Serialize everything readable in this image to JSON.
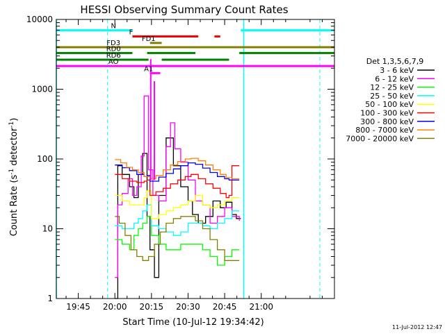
{
  "chart_data": {
    "type": "line",
    "title": "HESSI Observing Summary Count Rates",
    "xlabel": "Start Time (10-Jul-12 19:34:42)",
    "ylabel_main": "Count Rate (s",
    "ylabel_sup1": "-1",
    "ylabel_mid": " detector",
    "ylabel_sup2": "-1",
    "ylabel_end": ")",
    "footer": "11-Jul-2012 12:47",
    "x_range_min": [
      19.6,
      21.5
    ],
    "y_scale": "log",
    "y_range": [
      1,
      10000
    ],
    "x_ticks": [
      {
        "min": 19.75,
        "label": "19:45"
      },
      {
        "min": 20.0,
        "label": "20:00"
      },
      {
        "min": 20.25,
        "label": "20:15"
      },
      {
        "min": 20.5,
        "label": "20:30"
      },
      {
        "min": 20.75,
        "label": "20:45"
      },
      {
        "min": 21.0,
        "label": "21:00"
      }
    ],
    "y_ticks": [
      {
        "value": 1,
        "label": "1"
      },
      {
        "value": 10,
        "label": "10"
      },
      {
        "value": 100,
        "label": "100"
      },
      {
        "value": 1000,
        "label": "1000"
      },
      {
        "value": 10000,
        "label": "10000"
      }
    ],
    "legend_title": "Det 1,3,5,6,7,9",
    "legend_placement": "right",
    "series": [
      {
        "name": "3 - 6 keV",
        "color": "#000000",
        "points": [
          [
            20.0,
            1
          ],
          [
            20.02,
            80
          ],
          [
            20.05,
            60
          ],
          [
            20.1,
            40
          ],
          [
            20.13,
            28
          ],
          [
            20.16,
            60
          ],
          [
            20.19,
            120
          ],
          [
            20.22,
            15
          ],
          [
            20.24,
            5
          ],
          [
            20.27,
            2
          ],
          [
            20.3,
            30
          ],
          [
            20.35,
            200
          ],
          [
            20.4,
            80
          ],
          [
            20.45,
            40
          ],
          [
            20.5,
            25
          ],
          [
            20.53,
            16
          ],
          [
            20.57,
            12
          ],
          [
            20.62,
            15
          ],
          [
            20.67,
            25
          ],
          [
            20.72,
            20
          ],
          [
            20.76,
            24
          ],
          [
            20.8,
            16
          ],
          [
            20.83,
            14
          ],
          [
            20.86,
            14
          ]
        ]
      },
      {
        "name": "6 - 12 keV",
        "color": "#ff00ff",
        "points": [
          [
            20.0,
            2
          ],
          [
            20.02,
            22
          ],
          [
            20.05,
            32
          ],
          [
            20.09,
            52
          ],
          [
            20.12,
            30
          ],
          [
            20.15,
            40
          ],
          [
            20.18,
            110
          ],
          [
            20.2,
            800
          ],
          [
            20.23,
            70
          ],
          [
            20.26,
            30
          ],
          [
            20.3,
            25
          ],
          [
            20.35,
            150
          ],
          [
            20.38,
            330
          ],
          [
            20.41,
            140
          ],
          [
            20.45,
            90
          ],
          [
            20.5,
            50
          ],
          [
            20.55,
            25
          ],
          [
            20.6,
            22
          ],
          [
            20.65,
            12
          ],
          [
            20.7,
            15
          ],
          [
            20.75,
            20
          ],
          [
            20.8,
            15
          ],
          [
            20.85,
            13
          ]
        ]
      },
      {
        "name": "12 - 25 keV",
        "color": "#00ff00",
        "points": [
          [
            20.0,
            7
          ],
          [
            20.05,
            6
          ],
          [
            20.1,
            5
          ],
          [
            20.13,
            8
          ],
          [
            20.16,
            10
          ],
          [
            20.19,
            12
          ],
          [
            20.22,
            15
          ],
          [
            20.25,
            8
          ],
          [
            20.3,
            6
          ],
          [
            20.35,
            5
          ],
          [
            20.4,
            5
          ],
          [
            20.45,
            6
          ],
          [
            20.5,
            6
          ],
          [
            20.55,
            6
          ],
          [
            20.6,
            5
          ],
          [
            20.65,
            4
          ],
          [
            20.7,
            3
          ],
          [
            20.75,
            4
          ],
          [
            20.8,
            5
          ],
          [
            20.85,
            5
          ]
        ]
      },
      {
        "name": "25 - 50 keV",
        "color": "#00ffff",
        "points": [
          [
            20.0,
            11
          ],
          [
            20.05,
            10
          ],
          [
            20.1,
            10
          ],
          [
            20.13,
            12
          ],
          [
            20.16,
            14
          ],
          [
            20.19,
            18
          ],
          [
            20.22,
            22
          ],
          [
            20.25,
            11
          ],
          [
            20.3,
            10
          ],
          [
            20.35,
            9
          ],
          [
            20.4,
            8
          ],
          [
            20.45,
            9
          ],
          [
            20.5,
            12
          ],
          [
            20.55,
            12
          ],
          [
            20.6,
            11
          ],
          [
            20.65,
            10
          ],
          [
            20.7,
            12
          ],
          [
            20.75,
            14
          ],
          [
            20.8,
            18
          ],
          [
            20.85,
            18
          ]
        ]
      },
      {
        "name": "50 - 100 keV",
        "color": "#ffff00",
        "points": [
          [
            20.0,
            30
          ],
          [
            20.05,
            25
          ],
          [
            20.1,
            22
          ],
          [
            20.15,
            22
          ],
          [
            20.2,
            28
          ],
          [
            20.22,
            35
          ],
          [
            20.25,
            14
          ],
          [
            20.3,
            16
          ],
          [
            20.35,
            18
          ],
          [
            20.4,
            20
          ],
          [
            20.45,
            22
          ],
          [
            20.5,
            25
          ],
          [
            20.55,
            30
          ],
          [
            20.6,
            22
          ],
          [
            20.65,
            20
          ],
          [
            20.7,
            22
          ],
          [
            20.75,
            25
          ],
          [
            20.8,
            28
          ],
          [
            20.85,
            28
          ]
        ]
      },
      {
        "name": "100 - 300 keV",
        "color": "#ff0000",
        "points": [
          [
            20.0,
            60
          ],
          [
            20.05,
            52
          ],
          [
            20.1,
            48
          ],
          [
            20.15,
            46
          ],
          [
            20.2,
            48
          ],
          [
            20.22,
            50
          ],
          [
            20.24,
            30
          ],
          [
            20.28,
            34
          ],
          [
            20.33,
            38
          ],
          [
            20.38,
            44
          ],
          [
            20.43,
            50
          ],
          [
            20.48,
            56
          ],
          [
            20.52,
            60
          ],
          [
            20.57,
            52
          ],
          [
            20.62,
            44
          ],
          [
            20.67,
            38
          ],
          [
            20.72,
            32
          ],
          [
            20.76,
            28
          ],
          [
            20.78,
            30
          ],
          [
            20.8,
            80
          ],
          [
            20.85,
            80
          ]
        ]
      },
      {
        "name": "300 - 800 keV",
        "color": "#0000ff",
        "points": [
          [
            20.0,
            82
          ],
          [
            20.05,
            75
          ],
          [
            20.1,
            68
          ],
          [
            20.15,
            60
          ],
          [
            20.2,
            56
          ],
          [
            20.22,
            58
          ],
          [
            20.24,
            48
          ],
          [
            20.3,
            55
          ],
          [
            20.35,
            62
          ],
          [
            20.4,
            72
          ],
          [
            20.45,
            80
          ],
          [
            20.5,
            88
          ],
          [
            20.55,
            84
          ],
          [
            20.6,
            74
          ],
          [
            20.65,
            64
          ],
          [
            20.7,
            56
          ],
          [
            20.75,
            52
          ],
          [
            20.78,
            50
          ],
          [
            20.8,
            50
          ],
          [
            20.85,
            50
          ]
        ]
      },
      {
        "name": "800 - 7000 keV",
        "color": "#ff8000",
        "points": [
          [
            20.0,
            98
          ],
          [
            20.04,
            88
          ],
          [
            20.08,
            76
          ],
          [
            20.12,
            70
          ],
          [
            20.16,
            64
          ],
          [
            20.2,
            56
          ],
          [
            20.24,
            52
          ],
          [
            20.28,
            58
          ],
          [
            20.33,
            70
          ],
          [
            20.38,
            82
          ],
          [
            20.43,
            92
          ],
          [
            20.48,
            100
          ],
          [
            20.52,
            102
          ],
          [
            20.57,
            94
          ],
          [
            20.62,
            82
          ],
          [
            20.67,
            70
          ],
          [
            20.72,
            60
          ],
          [
            20.76,
            54
          ],
          [
            20.8,
            52
          ],
          [
            20.85,
            52
          ]
        ]
      },
      {
        "name": "7000 - 20000 keV",
        "color": "#808000",
        "points": [
          [
            20.0,
            15
          ],
          [
            20.03,
            12
          ],
          [
            20.07,
            8
          ],
          [
            20.11,
            5
          ],
          [
            20.15,
            4
          ],
          [
            20.19,
            3.5
          ],
          [
            20.23,
            4
          ],
          [
            20.27,
            6
          ],
          [
            20.31,
            9
          ],
          [
            20.35,
            12
          ],
          [
            20.4,
            14
          ],
          [
            20.45,
            15
          ],
          [
            20.5,
            15
          ],
          [
            20.55,
            13
          ],
          [
            20.6,
            10
          ],
          [
            20.65,
            7
          ],
          [
            20.7,
            5
          ],
          [
            20.75,
            3.5
          ],
          [
            20.8,
            3.5
          ],
          [
            20.85,
            3.5
          ]
        ]
      }
    ],
    "flag_bars": [
      {
        "label": "N",
        "label_color": "#00ffff",
        "color": "#00ffff",
        "value": 7000,
        "segments": [
          [
            19.6,
            20.12
          ],
          [
            20.86,
            21.5
          ]
        ]
      },
      {
        "label": "F",
        "label_color": "#ff0000",
        "color": "#ff0000",
        "value": 5700,
        "segments": [
          [
            20.12,
            20.57
          ],
          [
            20.68,
            20.72
          ]
        ]
      },
      {
        "label": "FD1",
        "label_color": "#808000",
        "color": "#808000",
        "value": 4600,
        "segments": [
          [
            20.24,
            20.32
          ]
        ]
      },
      {
        "label": "FD3",
        "label_color": "#808000",
        "color": "#808000",
        "value": 4000,
        "segments": [
          [
            19.6,
            21.5
          ]
        ]
      },
      {
        "label": "RD0",
        "label_color": "#008000",
        "color": "#008000",
        "value": 3300,
        "segments": [
          [
            19.6,
            20.12
          ],
          [
            20.22,
            20.55
          ],
          [
            20.85,
            21.5
          ]
        ]
      },
      {
        "label": "RD6",
        "label_color": "#008000",
        "color": "#008000",
        "value": 2650,
        "segments": [
          [
            19.6,
            20.23
          ],
          [
            20.32,
            20.78
          ]
        ]
      },
      {
        "label": "AO",
        "label_color": "#ff00ff",
        "color": "#ff00ff",
        "value": 2150,
        "segments": [
          [
            19.6,
            21.5
          ]
        ]
      },
      {
        "label": "A1",
        "label_color": "#ff00ff",
        "color": "#ff00ff",
        "value": 1700,
        "segments": [
          [
            20.24,
            20.31
          ]
        ]
      }
    ],
    "dashed_verticals": [
      {
        "min": 19.95,
        "color": "#00ffff"
      },
      {
        "min": 21.4,
        "color": "#00ffff"
      }
    ],
    "solid_verticals": [
      {
        "min": 19.6,
        "color": "#00ffff"
      },
      {
        "min": 20.88,
        "color": "#00ffff"
      }
    ],
    "spike_markers": [
      {
        "min": 20.245,
        "value": 2700,
        "color": "#ff00ff"
      },
      {
        "min": 20.27,
        "value": 1300,
        "color": "#ff00ff"
      }
    ]
  }
}
